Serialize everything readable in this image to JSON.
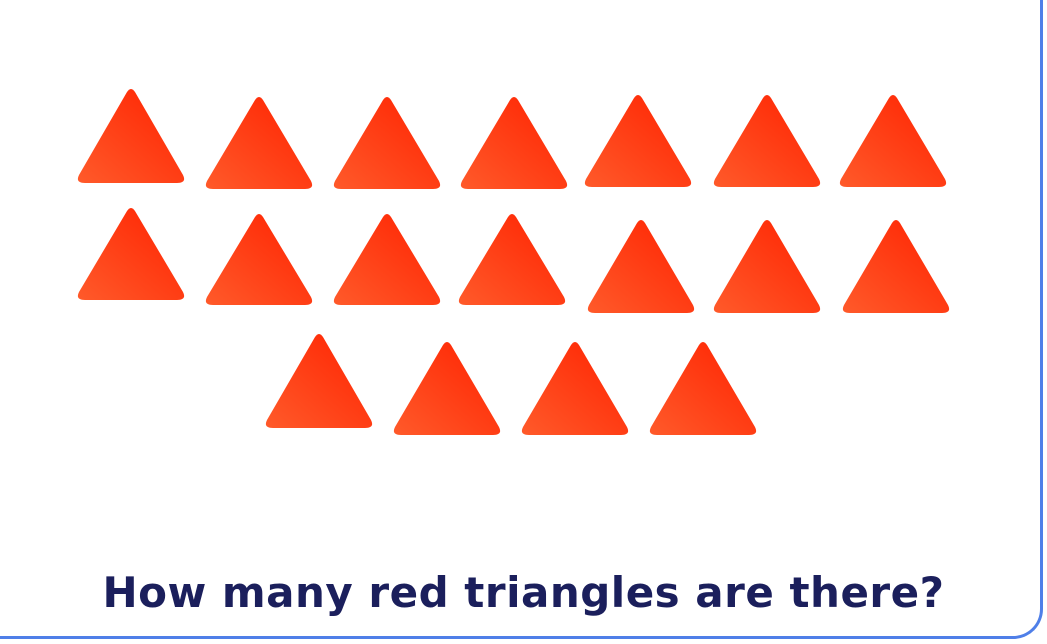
{
  "question": "How many red triangles are there?",
  "shape": {
    "kind": "triangle",
    "color_name": "red",
    "count": 18,
    "gradient_light": "#ff5a2a",
    "gradient_dark": "#ff2200"
  },
  "frame_color": "#4f7fe8",
  "text_color": "#1b1f5c"
}
